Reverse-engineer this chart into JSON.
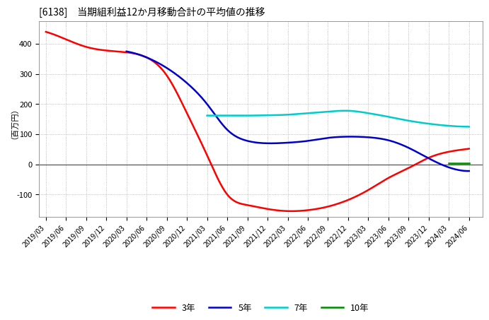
{
  "title": "[6138]　当期組利益12か月移動合計の平均値の推移",
  "ylabel": "（百万円）",
  "ylim": [
    -175,
    475
  ],
  "yticks": [
    -100,
    0,
    100,
    200,
    300,
    400
  ],
  "background_color": "#ffffff",
  "plot_bg_color": "#ffffff",
  "grid_color": "#aaaaaa",
  "y3_x": [
    0,
    3,
    6,
    9,
    12,
    15,
    18,
    21,
    24,
    27,
    30,
    33,
    36,
    39,
    42,
    45,
    48,
    51,
    54,
    57,
    60,
    63
  ],
  "y3_y": [
    440,
    415,
    390,
    378,
    372,
    355,
    295,
    170,
    30,
    -100,
    -135,
    -148,
    -155,
    -152,
    -140,
    -118,
    -85,
    -45,
    -12,
    22,
    42,
    52
  ],
  "y5_x": [
    12,
    15,
    18,
    21,
    24,
    27,
    30,
    33,
    36,
    39,
    42,
    45,
    48,
    51,
    54,
    57,
    60,
    63
  ],
  "y5_y": [
    375,
    355,
    320,
    270,
    200,
    115,
    78,
    70,
    72,
    78,
    88,
    92,
    90,
    80,
    55,
    20,
    -10,
    -22
  ],
  "y7_x": [
    24,
    27,
    30,
    33,
    36,
    39,
    42,
    45,
    48,
    51,
    54,
    57,
    60,
    63
  ],
  "y7_y": [
    162,
    162,
    162,
    163,
    165,
    170,
    175,
    178,
    170,
    158,
    145,
    135,
    128,
    125
  ],
  "y10_x": [
    48,
    51,
    54,
    57,
    60,
    63
  ],
  "y10_y": [
    null,
    null,
    null,
    null,
    null,
    null
  ],
  "color_3y": "#ff0000",
  "color_5y": "#0000cc",
  "color_7y": "#00cccc",
  "color_10y": "#008800",
  "label_3y": "3年",
  "label_5y": "5年",
  "label_7y": "7年",
  "label_10y": "10年",
  "x_start": "2019/03",
  "x_end": "2024/06",
  "x_tick_months": [
    0,
    3,
    6,
    9,
    12,
    15,
    18,
    21,
    24,
    27,
    30,
    33,
    36,
    39,
    42,
    45,
    48,
    51,
    54,
    57,
    60,
    63
  ],
  "x_tick_labels": [
    "2019/03",
    "2019/06",
    "2019/09",
    "2019/12",
    "2020/03",
    "2020/06",
    "2020/09",
    "2020/12",
    "2021/03",
    "2021/06",
    "2021/09",
    "2021/12",
    "2022/03",
    "2022/06",
    "2022/09",
    "2022/12",
    "2023/03",
    "2023/06",
    "2023/09",
    "2023/12",
    "2024/03",
    "2024/06"
  ]
}
